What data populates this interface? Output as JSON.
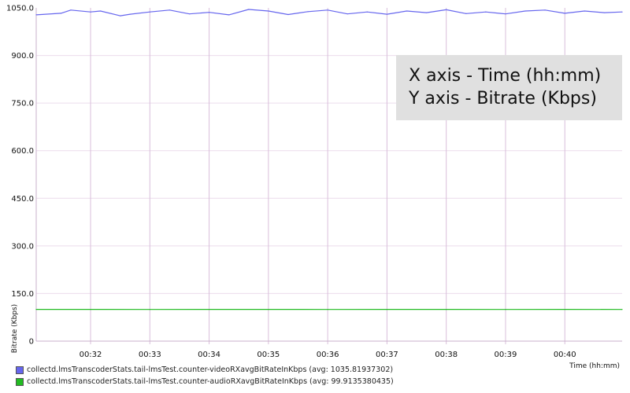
{
  "chart_data": {
    "type": "line",
    "xlabel": "Time (hh:mm)",
    "ylabel": "Bitrate (Kbps)",
    "x_ticks": [
      "00:32",
      "00:33",
      "00:34",
      "00:35",
      "00:36",
      "00:37",
      "00:38",
      "00:39",
      "00:40"
    ],
    "xlim": [
      "00:31:05",
      "00:40:58"
    ],
    "y_ticks": [
      "0",
      "150.0",
      "300.0",
      "450.0",
      "600.0",
      "750.0",
      "900.0",
      "1050.0"
    ],
    "ylim": [
      0,
      1050
    ],
    "grid": true,
    "legend_position": "bottom-left",
    "series": [
      {
        "name": "collectd.lmsTranscoderStats.tail-lmsTest.counter-videoRXavgBitRateInKbps (avg: 1035.81937302)",
        "color": "#6666ee",
        "x": [
          "00:31:05",
          "00:31:30",
          "00:31:40",
          "00:32:00",
          "00:32:10",
          "00:32:30",
          "00:32:40",
          "00:33:00",
          "00:33:20",
          "00:33:40",
          "00:34:00",
          "00:34:20",
          "00:34:40",
          "00:35:00",
          "00:35:20",
          "00:35:40",
          "00:36:00",
          "00:36:20",
          "00:36:40",
          "00:37:00",
          "00:37:20",
          "00:37:40",
          "00:38:00",
          "00:38:20",
          "00:38:40",
          "00:39:00",
          "00:39:20",
          "00:39:40",
          "00:40:00",
          "00:40:20",
          "00:40:40",
          "00:40:58"
        ],
        "values": [
          1028,
          1033,
          1043,
          1037,
          1040,
          1025,
          1030,
          1037,
          1043,
          1031,
          1036,
          1028,
          1045,
          1040,
          1029,
          1038,
          1043,
          1031,
          1037,
          1030,
          1040,
          1035,
          1044,
          1032,
          1037,
          1031,
          1040,
          1043,
          1033,
          1040,
          1035,
          1037
        ]
      },
      {
        "name": "collectd.lmsTranscoderStats.tail-lmsTest.counter-audioRXavgBitRateInKbps (avg: 99.9135380435)",
        "color": "#22bb22",
        "x": [
          "00:31:05",
          "00:32:00",
          "00:33:00",
          "00:34:00",
          "00:35:00",
          "00:36:00",
          "00:37:00",
          "00:38:00",
          "00:39:00",
          "00:40:00",
          "00:40:58"
        ],
        "values": [
          100,
          100,
          99.8,
          100,
          100,
          99.9,
          100,
          100,
          99.9,
          100,
          99.8
        ]
      }
    ]
  },
  "annotation": {
    "line1": "X axis - Time (hh:mm)",
    "line2": "Y axis - Bitrate (Kbps)"
  }
}
